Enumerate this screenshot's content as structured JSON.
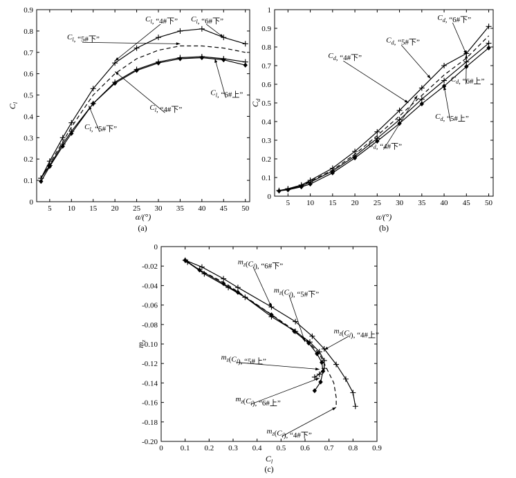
{
  "chart_data": [
    {
      "id": "a",
      "type": "line",
      "caption": "(a)",
      "xlabel": "α/(°)",
      "ylabel": "C_l",
      "xlim": [
        2,
        51
      ],
      "ylim": [
        0,
        0.9
      ],
      "xticks": [
        5,
        10,
        15,
        20,
        25,
        30,
        35,
        40,
        45,
        50
      ],
      "yticks": [
        0,
        0.1,
        0.2,
        0.3,
        0.4,
        0.5,
        0.6,
        0.7,
        0.8,
        0.9
      ],
      "x": [
        3,
        5,
        8,
        10,
        15,
        20,
        25,
        30,
        35,
        40,
        45,
        50
      ],
      "series": [
        {
          "name": "C_l, “6#下”",
          "marker": "plus",
          "dash": false,
          "values": [
            0.11,
            0.19,
            0.3,
            0.37,
            0.53,
            0.65,
            0.72,
            0.77,
            0.8,
            0.81,
            0.77,
            0.74
          ]
        },
        {
          "name": "C_l, “4#下”",
          "marker": "none",
          "dash": true,
          "values": [
            0.11,
            0.18,
            0.28,
            0.35,
            0.5,
            0.6,
            0.67,
            0.71,
            0.73,
            0.73,
            0.72,
            0.7
          ]
        },
        {
          "name": "C_l, “5#下”",
          "marker": "plus",
          "dash": false,
          "values": [
            0.11,
            0.17,
            0.27,
            0.33,
            0.46,
            0.56,
            0.62,
            0.655,
            0.675,
            0.68,
            0.67,
            0.655
          ]
        },
        {
          "name": "C_l, “6#上”",
          "marker": "diamond",
          "dash": false,
          "values": [
            0.095,
            0.165,
            0.26,
            0.32,
            0.46,
            0.555,
            0.615,
            0.65,
            0.67,
            0.675,
            0.665,
            0.64
          ]
        }
      ],
      "annotations": [
        {
          "text": "C_l, “4#下”",
          "x": 27,
          "y": 0.845
        },
        {
          "text": "C_l, “5#下”",
          "x": 9,
          "y": 0.76
        },
        {
          "text": "C_l, “6#下”",
          "x": 37.5,
          "y": 0.845
        },
        {
          "text": "C_l, “4#下”",
          "x": 28,
          "y": 0.43
        },
        {
          "text": "C_l, “6#上”",
          "x": 42,
          "y": 0.5
        },
        {
          "text": "C_l, “5#下”",
          "x": 13,
          "y": 0.34
        }
      ]
    },
    {
      "id": "b",
      "type": "line",
      "caption": "(b)",
      "xlabel": "α/(°)",
      "ylabel": "C_d",
      "xlim": [
        2,
        51
      ],
      "ylim": [
        0,
        1
      ],
      "xticks": [
        5,
        10,
        15,
        20,
        25,
        30,
        35,
        40,
        45,
        50
      ],
      "yticks": [
        0,
        0.1,
        0.2,
        0.3,
        0.4,
        0.5,
        0.6,
        0.7,
        0.8,
        0.9,
        1
      ],
      "x": [
        3,
        5,
        8,
        10,
        15,
        20,
        25,
        30,
        35,
        40,
        45,
        50
      ],
      "series": [
        {
          "name": "C_d, “6#下”",
          "marker": "plus",
          "dash": false,
          "values": [
            0.03,
            0.04,
            0.06,
            0.085,
            0.15,
            0.24,
            0.345,
            0.46,
            0.58,
            0.7,
            0.765,
            0.91
          ]
        },
        {
          "name": "C_d, “4#下”",
          "marker": "none",
          "dash": true,
          "values": [
            0.03,
            0.038,
            0.057,
            0.08,
            0.14,
            0.225,
            0.325,
            0.43,
            0.54,
            0.65,
            0.74,
            0.86
          ]
        },
        {
          "name": "C_d, “5#下”",
          "marker": "plus",
          "dash": false,
          "values": [
            0.03,
            0.036,
            0.055,
            0.075,
            0.135,
            0.215,
            0.31,
            0.41,
            0.52,
            0.62,
            0.72,
            0.82
          ]
        },
        {
          "name": "C_d, “6#上”",
          "marker": "diamond",
          "dash": false,
          "values": [
            0.028,
            0.034,
            0.05,
            0.065,
            0.125,
            0.205,
            0.295,
            0.39,
            0.495,
            0.59,
            0.695,
            0.795
          ]
        }
      ],
      "annotations": [
        {
          "text": "C_d, “6#下”",
          "x": 38.5,
          "y": 0.945
        },
        {
          "text": "C_d, “5#下”",
          "x": 27,
          "y": 0.825
        },
        {
          "text": "C_d, “4#下”",
          "x": 14,
          "y": 0.74
        },
        {
          "text": "C_d, “6#上”",
          "x": 41.5,
          "y": 0.615
        },
        {
          "text": "C_d, “5#上”",
          "x": 38,
          "y": 0.415
        },
        {
          "text": "C_d, “4#下”",
          "x": 23,
          "y": 0.265
        }
      ]
    },
    {
      "id": "c",
      "type": "line",
      "caption": "(c)",
      "xlabel": "C_l",
      "ylabel": "m_z",
      "xlim": [
        0,
        0.9
      ],
      "ylim": [
        -0.2,
        0
      ],
      "xticks": [
        0,
        0.1,
        0.2,
        0.3,
        0.4,
        0.5,
        0.6,
        0.7,
        0.8,
        0.9
      ],
      "yticks": [
        0,
        -0.02,
        -0.04,
        -0.06,
        -0.08,
        -0.1,
        -0.12,
        -0.14,
        -0.16,
        -0.18,
        -0.2
      ],
      "series": [
        {
          "name": "m_z(C_l), “6#下”",
          "marker": "plus",
          "dash": false,
          "x": [
            0.1,
            0.17,
            0.26,
            0.32,
            0.46,
            0.56,
            0.63,
            0.68,
            0.73,
            0.77,
            0.8,
            0.81
          ],
          "y": [
            -0.014,
            -0.021,
            -0.033,
            -0.042,
            -0.062,
            -0.077,
            -0.092,
            -0.105,
            -0.121,
            -0.136,
            -0.15,
            -0.164
          ]
        },
        {
          "name": "m_z(C_l), “4#下”",
          "marker": "none",
          "dash": true,
          "x": [
            0.1,
            0.17,
            0.27,
            0.33,
            0.45,
            0.55,
            0.61,
            0.66,
            0.69,
            0.72,
            0.73,
            0.73
          ],
          "y": [
            -0.015,
            -0.025,
            -0.038,
            -0.048,
            -0.068,
            -0.085,
            -0.097,
            -0.11,
            -0.125,
            -0.14,
            -0.155,
            -0.165
          ]
        },
        {
          "name": "m_z(C_l), “5#下”",
          "marker": "plus",
          "dash": false,
          "x": [
            0.11,
            0.18,
            0.28,
            0.35,
            0.46,
            0.56,
            0.62,
            0.66,
            0.68,
            0.68,
            0.66,
            0.64
          ],
          "y": [
            -0.016,
            -0.028,
            -0.042,
            -0.052,
            -0.072,
            -0.087,
            -0.098,
            -0.108,
            -0.117,
            -0.125,
            -0.131,
            -0.134
          ]
        },
        {
          "name": "m_z(C_l), “6#上”",
          "marker": "diamond",
          "dash": false,
          "x": [
            0.1,
            0.16,
            0.26,
            0.32,
            0.46,
            0.555,
            0.615,
            0.65,
            0.67,
            0.675,
            0.665,
            0.64
          ],
          "y": [
            -0.014,
            -0.024,
            -0.038,
            -0.047,
            -0.07,
            -0.087,
            -0.099,
            -0.11,
            -0.119,
            -0.128,
            -0.139,
            -0.148
          ]
        }
      ],
      "annotations": [
        {
          "text": "m_z(C_l), “6#下”",
          "x": 0.32,
          "y": -0.018
        },
        {
          "text": "m_z(C_l), “5#下”",
          "x": 0.47,
          "y": -0.047
        },
        {
          "text": "m_z(C_l), “4#上”",
          "x": 0.72,
          "y": -0.089
        },
        {
          "text": "m_z(C_l), “5#上”",
          "x": 0.25,
          "y": -0.116
        },
        {
          "text": "m_z(C_l), “6#上”",
          "x": 0.31,
          "y": -0.159
        },
        {
          "text": "m_z(C_l), “4#下”",
          "x": 0.44,
          "y": -0.192
        }
      ]
    }
  ]
}
